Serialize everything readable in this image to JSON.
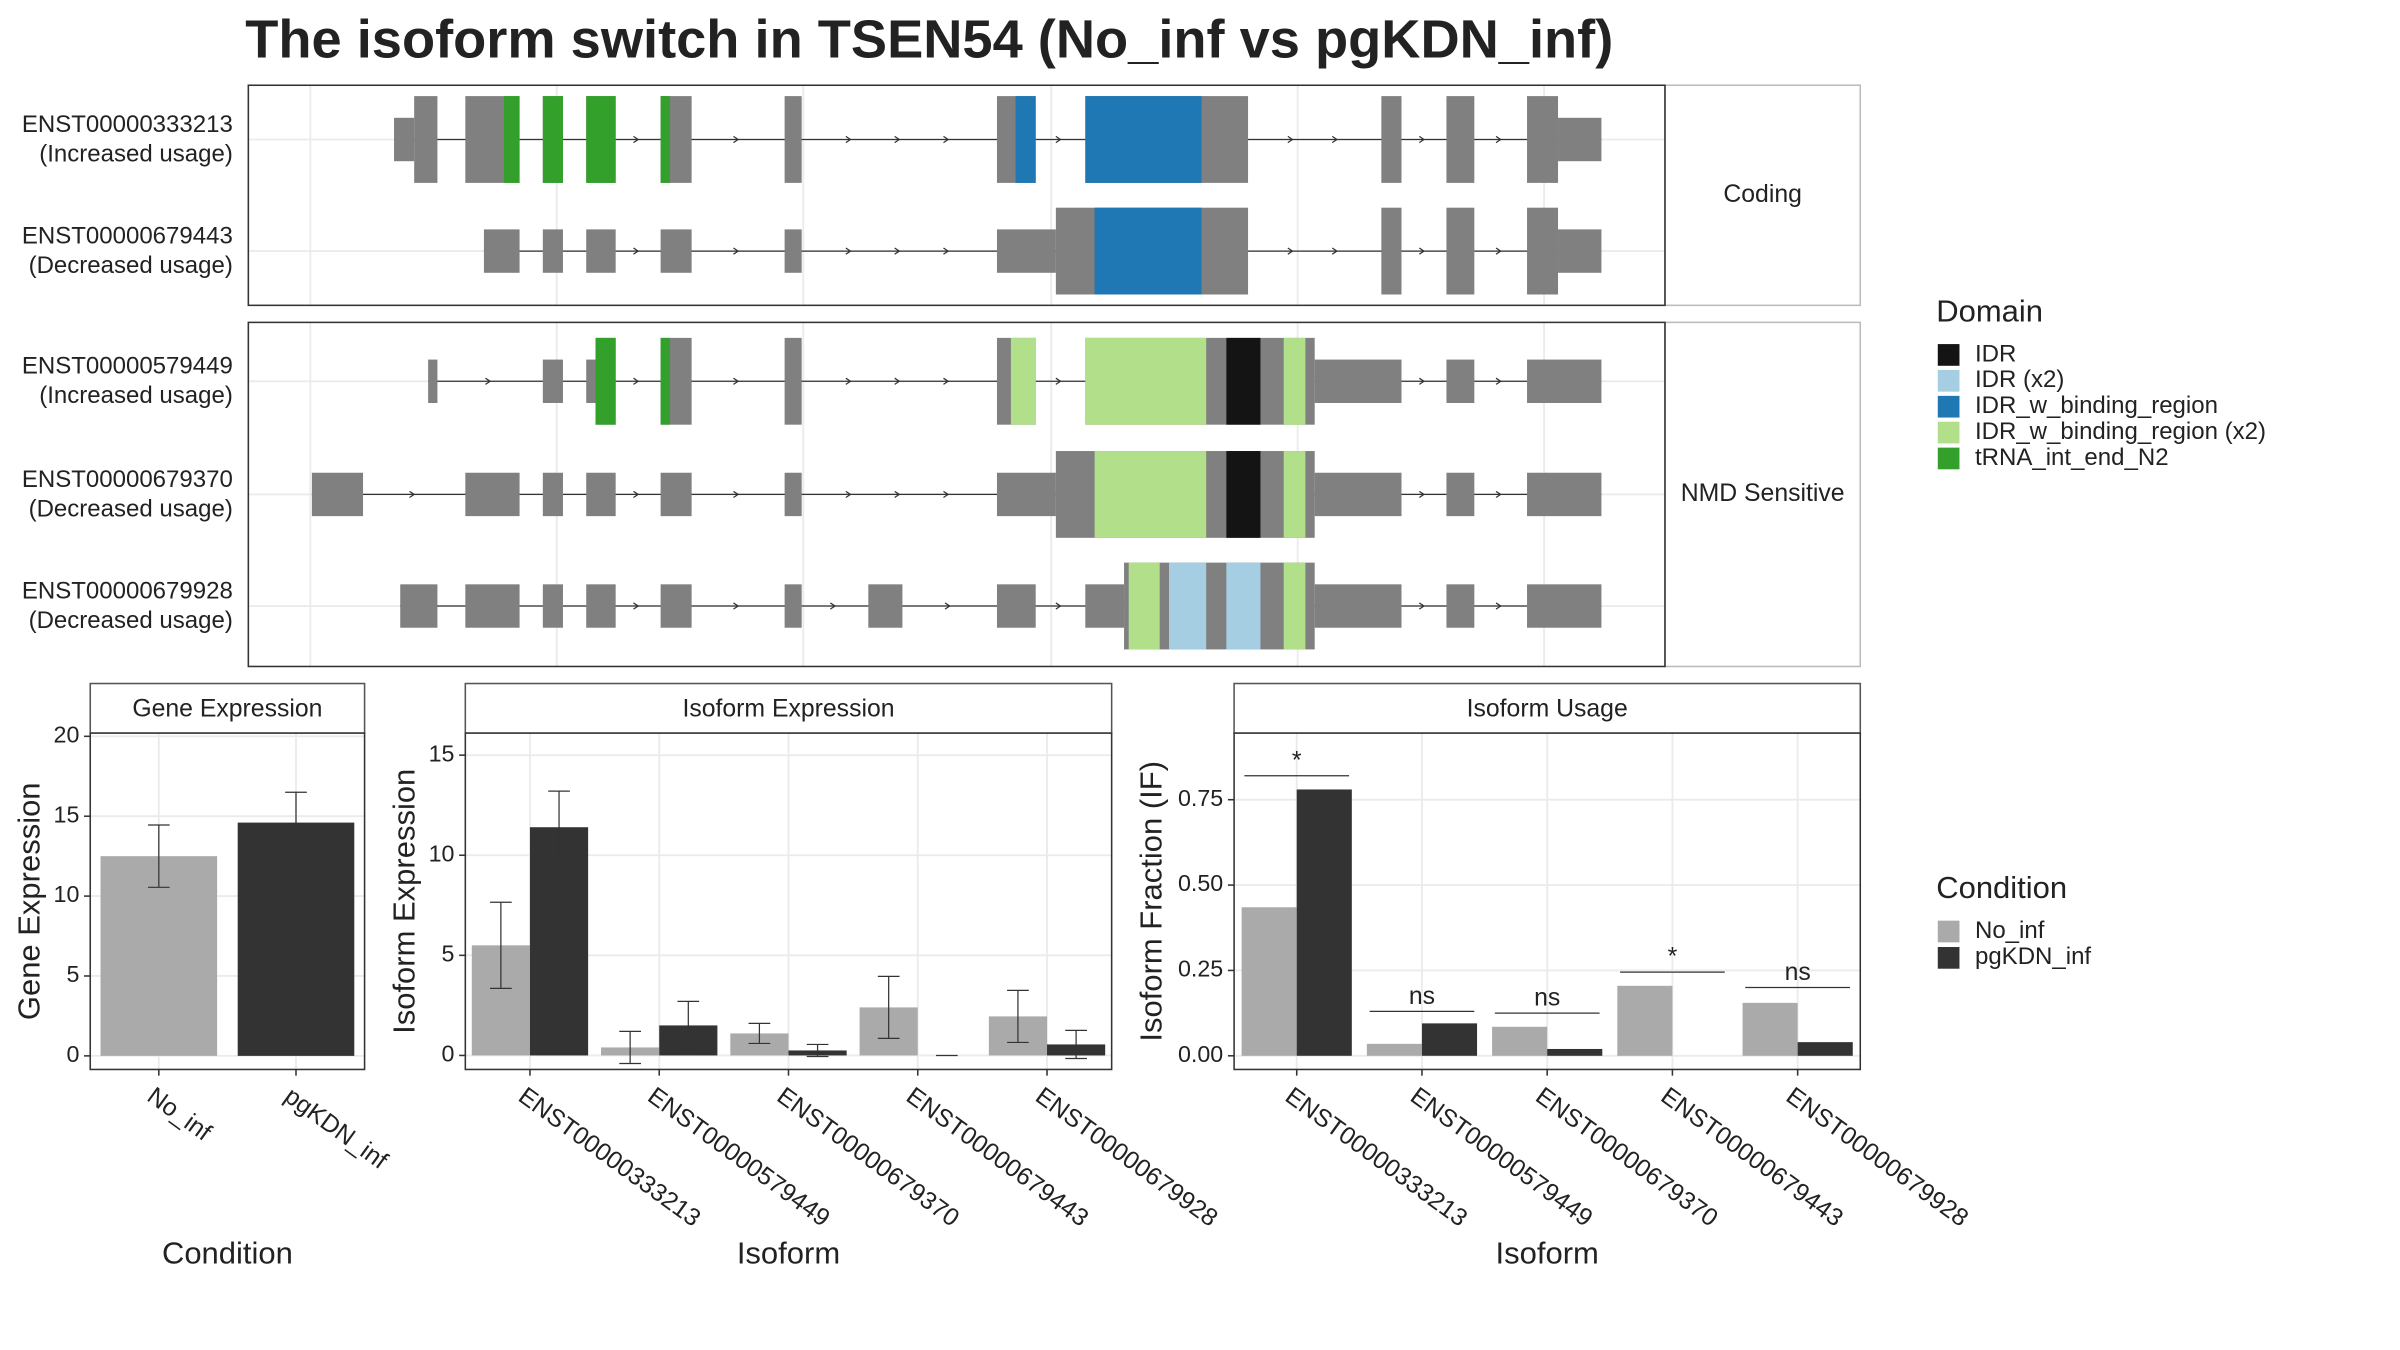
{
  "title": "The isoform switch in TSEN54 (No_inf vs pgKDN_inf)",
  "chart_data": [
    {
      "type": "isoform_structure",
      "xlim": [
        160,
        1074
      ],
      "xticks": [
        200,
        359,
        518,
        678,
        837,
        996
      ],
      "grid": true,
      "exon_color": "#808080",
      "legend_title": "Domain",
      "domains": [
        {
          "name": "IDR",
          "color": "#141414"
        },
        {
          "name": "IDR (x2)",
          "color": "#a6cee3"
        },
        {
          "name": "IDR_w_binding_region",
          "color": "#1f78b4"
        },
        {
          "name": "IDR_w_binding_region (x2)",
          "color": "#b2df8a"
        },
        {
          "name": "tRNA_int_end_N2",
          "color": "#33a02c"
        }
      ],
      "groups": [
        {
          "label": "Coding",
          "transcripts": [
            {
              "name": "ENST00000333213",
              "usage": "(Increased usage)",
              "thin": [
                [
                  254,
                  267
                ],
                [
                  1005,
                  1033
                ]
              ],
              "thick": [
                [
                  267,
                  282
                ],
                [
                  300,
                  335
                ],
                [
                  350,
                  363
                ],
                [
                  378,
                  397
                ],
                [
                  426,
                  446
                ],
                [
                  506,
                  517
                ],
                [
                  643,
                  668
                ],
                [
                  700,
                  805
                ],
                [
                  891,
                  904
                ],
                [
                  933,
                  951
                ],
                [
                  985,
                  1005
                ]
              ],
              "domains": [
                [
                  4,
                  325,
                  335
                ],
                [
                  4,
                  350,
                  363
                ],
                [
                  4,
                  378,
                  397
                ],
                [
                  4,
                  426,
                  432
                ],
                [
                  2,
                  655,
                  668
                ],
                [
                  2,
                  700,
                  775
                ]
              ]
            },
            {
              "name": "ENST00000679443",
              "usage": "(Decreased usage)",
              "thin": [
                [
                  312,
                  335
                ],
                [
                  350,
                  363
                ],
                [
                  378,
                  397
                ],
                [
                  426,
                  446
                ],
                [
                  506,
                  517
                ],
                [
                  643,
                  681
                ],
                [
                  1005,
                  1033
                ]
              ],
              "thick": [
                [
                  681,
                  805
                ],
                [
                  891,
                  904
                ],
                [
                  933,
                  951
                ],
                [
                  985,
                  1005
                ]
              ],
              "domains": [
                [
                  2,
                  706,
                  775
                ]
              ]
            }
          ]
        },
        {
          "label": "NMD Sensitive",
          "transcripts": [
            {
              "name": "ENST00000579449",
              "usage": "(Increased usage)",
              "thin": [
                [
                  276,
                  282
                ],
                [
                  350,
                  363
                ],
                [
                  378,
                  384
                ],
                [
                  848,
                  904
                ],
                [
                  933,
                  951
                ],
                [
                  985,
                  1033
                ]
              ],
              "thick": [
                [
                  384,
                  397
                ],
                [
                  426,
                  446
                ],
                [
                  506,
                  517
                ],
                [
                  643,
                  668
                ],
                [
                  700,
                  848
                ]
              ],
              "domains": [
                [
                  4,
                  384,
                  397
                ],
                [
                  4,
                  426,
                  432
                ],
                [
                  3,
                  652,
                  668
                ],
                [
                  3,
                  700,
                  778
                ],
                [
                  0,
                  791,
                  813
                ],
                [
                  3,
                  828,
                  842
                ]
              ]
            },
            {
              "name": "ENST00000679370",
              "usage": "(Decreased usage)",
              "thin": [
                [
                  201,
                  234
                ],
                [
                  300,
                  335
                ],
                [
                  350,
                  363
                ],
                [
                  378,
                  397
                ],
                [
                  426,
                  446
                ],
                [
                  506,
                  517
                ],
                [
                  643,
                  681
                ],
                [
                  848,
                  904
                ],
                [
                  933,
                  951
                ],
                [
                  985,
                  1033
                ]
              ],
              "thick": [
                [
                  681,
                  848
                ]
              ],
              "domains": [
                [
                  3,
                  706,
                  778
                ],
                [
                  0,
                  791,
                  813
                ],
                [
                  3,
                  828,
                  842
                ]
              ]
            },
            {
              "name": "ENST00000679928",
              "usage": "(Decreased usage)",
              "thin": [
                [
                  258,
                  282
                ],
                [
                  300,
                  335
                ],
                [
                  350,
                  363
                ],
                [
                  378,
                  397
                ],
                [
                  426,
                  446
                ],
                [
                  506,
                  517
                ],
                [
                  560,
                  582
                ],
                [
                  643,
                  668
                ],
                [
                  700,
                  725
                ],
                [
                  848,
                  904
                ],
                [
                  933,
                  951
                ],
                [
                  985,
                  1033
                ]
              ],
              "thick": [
                [
                  725,
                  848
                ]
              ],
              "domains": [
                [
                  3,
                  728,
                  748
                ],
                [
                  1,
                  754,
                  778
                ],
                [
                  1,
                  791,
                  813
                ],
                [
                  3,
                  828,
                  842
                ]
              ]
            }
          ]
        }
      ]
    },
    {
      "type": "bar",
      "strip": "Gene Expression",
      "ylabel": "Gene Expression",
      "xlabel": "Condition",
      "categories": [
        "No_inf",
        "pgKDN_inf"
      ],
      "values": [
        12.5,
        14.6
      ],
      "errors": [
        1.95,
        1.9
      ],
      "colors": [
        "#aaaaaa",
        "#333333"
      ],
      "ylim": [
        -0.85,
        20.2
      ],
      "yticks": [
        0,
        5,
        10,
        15,
        20
      ],
      "grid": true
    },
    {
      "type": "grouped_bar",
      "strip": "Isoform Expression",
      "ylabel": "Isoform Expression",
      "xlabel": "Isoform",
      "legend_title": "Condition",
      "categories": [
        "ENST00000333213",
        "ENST00000579449",
        "ENST00000679370",
        "ENST00000679443",
        "ENST00000679928"
      ],
      "series": [
        {
          "name": "No_inf",
          "color": "#aaaaaa",
          "values": [
            5.5,
            0.4,
            1.1,
            2.4,
            1.95
          ],
          "errors": [
            2.15,
            0.8,
            0.5,
            1.55,
            1.3
          ]
        },
        {
          "name": "pgKDN_inf",
          "color": "#333333",
          "values": [
            11.4,
            1.5,
            0.25,
            0,
            0.55
          ],
          "errors": [
            1.8,
            1.2,
            0.3,
            0,
            0.7
          ]
        }
      ],
      "ylim": [
        -0.7,
        16.1
      ],
      "yticks": [
        0,
        5,
        10,
        15
      ],
      "grid": true
    },
    {
      "type": "grouped_bar",
      "strip": "Isoform Usage",
      "ylabel": "Isoform Fraction (IF)",
      "xlabel": "Isoform",
      "categories": [
        "ENST00000333213",
        "ENST00000579449",
        "ENST00000679370",
        "ENST00000679443",
        "ENST00000679928"
      ],
      "series": [
        {
          "name": "No_inf",
          "color": "#aaaaaa",
          "values": [
            0.435,
            0.035,
            0.085,
            0.205,
            0.155
          ]
        },
        {
          "name": "pgKDN_inf",
          "color": "#333333",
          "values": [
            0.78,
            0.095,
            0.02,
            0,
            0.04
          ]
        }
      ],
      "significance": [
        {
          "label": "*",
          "y": 0.82
        },
        {
          "label": "ns",
          "y": 0.13
        },
        {
          "label": "ns",
          "y": 0.125
        },
        {
          "label": "*",
          "y": 0.245
        },
        {
          "label": "ns",
          "y": 0.2
        }
      ],
      "ylim": [
        -0.04,
        0.945
      ],
      "yticks": [
        {
          "value": 0,
          "label": "0.00"
        },
        {
          "value": 0.25,
          "label": "0.25"
        },
        {
          "value": 0.5,
          "label": "0.50"
        },
        {
          "value": 0.75,
          "label": "0.75"
        }
      ],
      "grid": true
    }
  ]
}
